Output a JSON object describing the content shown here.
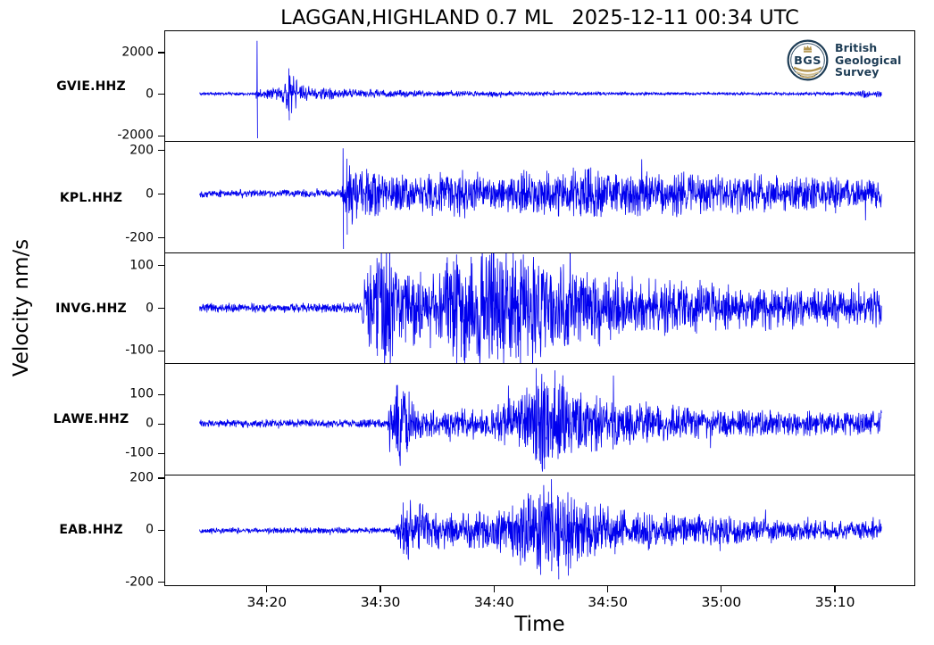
{
  "logo": {
    "abbr": "BGS",
    "org_lines": [
      "British",
      "Geological",
      "Survey"
    ],
    "navy": "#1d3c55",
    "gold": "#b3954e",
    "gold_light": "#cfbe92"
  },
  "chart_data": {
    "type": "line",
    "title": "LAGGAN,HIGHLAND 0.7 ML   2025-12-11 00:34 UTC",
    "xlabel": "Time",
    "ylabel": "Velocity nm/s",
    "grid": false,
    "legend": "none",
    "trace_color": "#0000ee",
    "x_tick_labels": [
      "34:20",
      "34:30",
      "34:40",
      "34:50",
      "35:00",
      "35:10"
    ],
    "x_tick_values_s": [
      20,
      30,
      40,
      50,
      60,
      70
    ],
    "xlim_s": [
      11.07,
      76.97
    ],
    "trace_span_s": [
      14.1,
      74.1
    ],
    "channels": [
      {
        "name": "GVIE.HHZ",
        "y_ticks": [
          2000,
          0,
          -2000
        ],
        "ylim": [
          -2307,
          3026
        ],
        "seed": 11,
        "envelope": [
          [
            14.1,
            55
          ],
          [
            18.9,
            55
          ],
          [
            19.4,
            190
          ],
          [
            21.3,
            230
          ],
          [
            21.8,
            720
          ],
          [
            22.4,
            640
          ],
          [
            23.2,
            320
          ],
          [
            24.5,
            230
          ],
          [
            26,
            185
          ],
          [
            28,
            155
          ],
          [
            31,
            135
          ],
          [
            34,
            115
          ],
          [
            36,
            105
          ],
          [
            39,
            95
          ],
          [
            39.7,
            135
          ],
          [
            40.5,
            100
          ],
          [
            44,
            80
          ],
          [
            47,
            70
          ],
          [
            50,
            62
          ],
          [
            54,
            56
          ],
          [
            58,
            50
          ],
          [
            61,
            56
          ],
          [
            64,
            50
          ],
          [
            67,
            62
          ],
          [
            69,
            55
          ],
          [
            71,
            72
          ],
          [
            72.6,
            145
          ],
          [
            73.4,
            120
          ],
          [
            74.1,
            130
          ]
        ],
        "spikes": [
          [
            19.15,
            2560,
            -2160
          ],
          [
            21.95,
            1230,
            -1290
          ]
        ]
      },
      {
        "name": "KPL.HHZ",
        "y_ticks": [
          200,
          0,
          -200
        ],
        "ylim": [
          -270,
          238
        ],
        "seed": 22,
        "envelope": [
          [
            14.1,
            13
          ],
          [
            26.5,
            13
          ],
          [
            26.9,
            70
          ],
          [
            27.4,
            115
          ],
          [
            28.6,
            95
          ],
          [
            30,
            72
          ],
          [
            33,
            60
          ],
          [
            36,
            66
          ],
          [
            37.6,
            82
          ],
          [
            40,
            62
          ],
          [
            43.6,
            86
          ],
          [
            45,
            66
          ],
          [
            48.6,
            92
          ],
          [
            50,
            72
          ],
          [
            52,
            82
          ],
          [
            54,
            66
          ],
          [
            56.6,
            86
          ],
          [
            59,
            62
          ],
          [
            62,
            72
          ],
          [
            65,
            56
          ],
          [
            68,
            62
          ],
          [
            71,
            52
          ],
          [
            74.1,
            56
          ]
        ],
        "spikes": [
          [
            26.72,
            208,
            -256
          ],
          [
            27.05,
            160,
            -190
          ]
        ]
      },
      {
        "name": "INVG.HHZ",
        "y_ticks": [
          100,
          0,
          -100
        ],
        "ylim": [
          -131,
          129
        ],
        "seed": 33,
        "envelope": [
          [
            14.1,
            8
          ],
          [
            28.3,
            9
          ],
          [
            28.8,
            72
          ],
          [
            29.6,
            100
          ],
          [
            30.4,
            112
          ],
          [
            31.4,
            78
          ],
          [
            32.6,
            64
          ],
          [
            34,
            70
          ],
          [
            35.6,
            76
          ],
          [
            36.6,
            94
          ],
          [
            38,
            98
          ],
          [
            39.6,
            108
          ],
          [
            40.6,
            112
          ],
          [
            41.6,
            102
          ],
          [
            42.6,
            110
          ],
          [
            43.6,
            94
          ],
          [
            44.6,
            86
          ],
          [
            46,
            76
          ],
          [
            48,
            66
          ],
          [
            50,
            60
          ],
          [
            52,
            56
          ],
          [
            54,
            50
          ],
          [
            57,
            46
          ],
          [
            60,
            42
          ],
          [
            63,
            38
          ],
          [
            66,
            35
          ],
          [
            69,
            33
          ],
          [
            72,
            35
          ],
          [
            74.1,
            38
          ]
        ],
        "spikes": [
          [
            29.7,
            118,
            -113
          ],
          [
            40.3,
            117,
            -121
          ],
          [
            41.9,
            112,
            -118
          ]
        ]
      },
      {
        "name": "LAWE.HHZ",
        "y_ticks": [
          100,
          0,
          -100
        ],
        "ylim": [
          -174,
          204
        ],
        "seed": 44,
        "envelope": [
          [
            14.1,
            10
          ],
          [
            30.6,
            11
          ],
          [
            31.0,
            72
          ],
          [
            31.7,
            108
          ],
          [
            32.4,
            88
          ],
          [
            33.3,
            46
          ],
          [
            34.5,
            36
          ],
          [
            36,
            33
          ],
          [
            38,
            36
          ],
          [
            40,
            42
          ],
          [
            41.5,
            62
          ],
          [
            42.8,
            84
          ],
          [
            43.8,
            118
          ],
          [
            44.6,
            145
          ],
          [
            45.4,
            128
          ],
          [
            46.5,
            100
          ],
          [
            47.6,
            86
          ],
          [
            49,
            72
          ],
          [
            51,
            62
          ],
          [
            53,
            56
          ],
          [
            55,
            46
          ],
          [
            58,
            42
          ],
          [
            61,
            36
          ],
          [
            64,
            33
          ],
          [
            67,
            31
          ],
          [
            70,
            29
          ],
          [
            74.1,
            31
          ]
        ],
        "spikes": [
          [
            31.5,
            132,
            -95
          ],
          [
            43.7,
            190,
            -122
          ],
          [
            44.4,
            142,
            -157
          ]
        ]
      },
      {
        "name": "EAB.HHZ",
        "y_ticks": [
          200,
          0,
          -200
        ],
        "ylim": [
          -212,
          212
        ],
        "seed": 55,
        "envelope": [
          [
            14.1,
            8
          ],
          [
            31.2,
            9
          ],
          [
            31.7,
            62
          ],
          [
            32.4,
            86
          ],
          [
            33.6,
            72
          ],
          [
            35,
            52
          ],
          [
            36.5,
            46
          ],
          [
            38,
            52
          ],
          [
            39.5,
            56
          ],
          [
            41,
            66
          ],
          [
            42.5,
            92
          ],
          [
            43.6,
            112
          ],
          [
            44.6,
            132
          ],
          [
            45.3,
            152
          ],
          [
            46.3,
            122
          ],
          [
            47.3,
            102
          ],
          [
            48.6,
            82
          ],
          [
            50,
            66
          ],
          [
            52,
            56
          ],
          [
            54,
            50
          ],
          [
            56,
            46
          ],
          [
            58,
            42
          ],
          [
            60,
            39
          ],
          [
            62,
            36
          ],
          [
            65,
            31
          ],
          [
            68,
            29
          ],
          [
            71,
            26
          ],
          [
            74.1,
            29
          ]
        ],
        "spikes": [
          [
            32.0,
            108,
            -90
          ],
          [
            45.05,
            198,
            -110
          ],
          [
            45.65,
            130,
            -188
          ]
        ]
      }
    ]
  }
}
